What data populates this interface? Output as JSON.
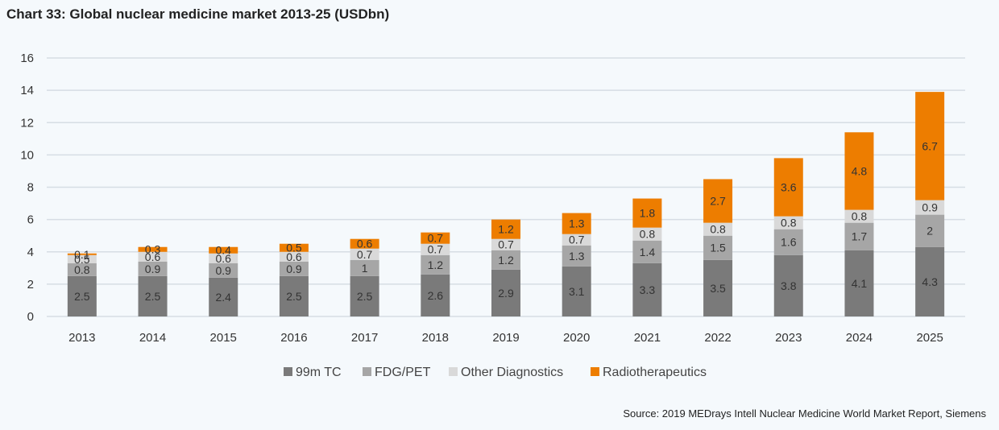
{
  "chart_data": {
    "type": "bar",
    "stacked": true,
    "title": "Chart 33: Global nuclear medicine market 2013-25 (USDbn)",
    "source": "Source: 2019 MEDrays Intell Nuclear Medicine World Market Report, Siemens",
    "categories": [
      "2013",
      "2014",
      "2015",
      "2016",
      "2017",
      "2018",
      "2019",
      "2020",
      "2021",
      "2022",
      "2023",
      "2024",
      "2025"
    ],
    "y_ticks": [
      "0",
      "2",
      "4",
      "6",
      "8",
      "10",
      "12",
      "14",
      "16"
    ],
    "ylim": [
      0,
      16
    ],
    "grid": true,
    "legend_position": "bottom",
    "series": [
      {
        "name": "99m TC",
        "color": "#7a7a7a",
        "values": [
          2.5,
          2.5,
          2.4,
          2.5,
          2.5,
          2.6,
          2.9,
          3.1,
          3.3,
          3.5,
          3.8,
          4.1,
          4.3
        ],
        "labels": [
          "2.5",
          "2.5",
          "2.4",
          "2.5",
          "2.5",
          "2.6",
          "2.9",
          "3.1",
          "3.3",
          "3.5",
          "3.8",
          "4.1",
          "4.3"
        ]
      },
      {
        "name": "FDG/PET",
        "color": "#a6a6a6",
        "values": [
          0.8,
          0.9,
          0.9,
          0.9,
          1,
          1.2,
          1.2,
          1.3,
          1.4,
          1.5,
          1.6,
          1.7,
          2
        ],
        "labels": [
          "0.8",
          "0.9",
          "0.9",
          "0.9",
          "1",
          "1.2",
          "1.2",
          "1.3",
          "1.4",
          "1.5",
          "1.6",
          "1.7",
          "2"
        ]
      },
      {
        "name": "Other Diagnostics",
        "color": "#d9d9d9",
        "values": [
          0.5,
          0.6,
          0.6,
          0.6,
          0.7,
          0.7,
          0.7,
          0.7,
          0.8,
          0.8,
          0.8,
          0.8,
          0.9
        ],
        "labels": [
          "0.5",
          "0.6",
          "0.6",
          "0.6",
          "0.7",
          "0.7",
          "0.7",
          "0.7",
          "0.8",
          "0.8",
          "0.8",
          "0.8",
          "0.9"
        ]
      },
      {
        "name": "Radiotherapeutics",
        "color": "#ed7d00",
        "values": [
          0.1,
          0.3,
          0.4,
          0.5,
          0.6,
          0.7,
          1.2,
          1.3,
          1.8,
          2.7,
          3.6,
          4.8,
          6.7
        ],
        "labels": [
          "0.1",
          "0.3",
          "0.4",
          "0.5",
          "0.6",
          "0.7",
          "1.2",
          "1.3",
          "1.8",
          "2.7",
          "3.6",
          "4.8",
          "6.7"
        ]
      }
    ]
  }
}
